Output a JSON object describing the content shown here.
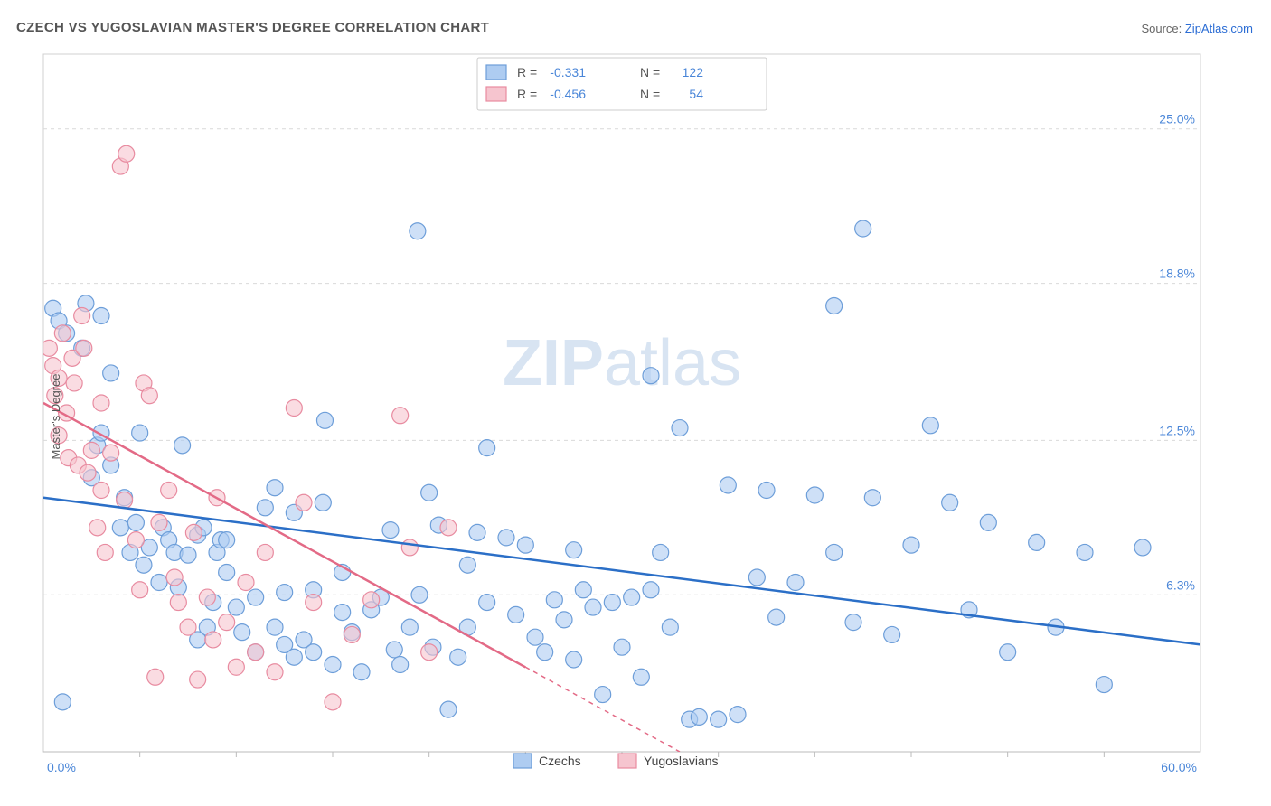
{
  "title": "CZECH VS YUGOSLAVIAN MASTER'S DEGREE CORRELATION CHART",
  "source_label": "Source: ",
  "source_site": "ZipAtlas.com",
  "ylabel": "Master's Degree",
  "watermark_bold": "ZIP",
  "watermark_rest": "atlas",
  "chart": {
    "type": "scatter",
    "background_color": "#ffffff",
    "grid_color": "#d9d9d9",
    "axis_color": "#999999",
    "xlim": [
      0,
      60
    ],
    "ylim": [
      0,
      28
    ],
    "x_ticks_major": [
      0,
      60
    ],
    "x_tick_labels": [
      "0.0%",
      "60.0%"
    ],
    "x_ticks_minor": [
      5,
      10,
      15,
      20,
      25,
      30,
      35,
      40,
      45,
      50,
      55
    ],
    "y_gridlines": [
      6.3,
      12.5,
      18.8,
      25.0
    ],
    "y_tick_labels": [
      "6.3%",
      "12.5%",
      "18.8%",
      "25.0%"
    ],
    "marker_radius": 9,
    "marker_stroke_width": 1.2,
    "trend_line_width": 2.5,
    "series": [
      {
        "name": "Czechs",
        "fill_color": "#aeccf1",
        "stroke_color": "#6d9ed9",
        "line_color": "#2b6fc7",
        "R": "-0.331",
        "N": "122",
        "trend": {
          "x1": 0,
          "y1": 10.2,
          "x2": 60,
          "y2": 4.3
        },
        "points": [
          [
            0.5,
            17.8
          ],
          [
            0.8,
            17.3
          ],
          [
            1.0,
            2.0
          ],
          [
            1.2,
            16.8
          ],
          [
            2.0,
            16.2
          ],
          [
            2.2,
            18.0
          ],
          [
            2.5,
            11.0
          ],
          [
            2.8,
            12.3
          ],
          [
            3.0,
            12.8
          ],
          [
            3.0,
            17.5
          ],
          [
            3.5,
            11.5
          ],
          [
            3.5,
            15.2
          ],
          [
            4.0,
            9.0
          ],
          [
            4.2,
            10.2
          ],
          [
            4.5,
            8.0
          ],
          [
            4.8,
            9.2
          ],
          [
            5.0,
            12.8
          ],
          [
            5.2,
            7.5
          ],
          [
            5.5,
            8.2
          ],
          [
            6.0,
            6.8
          ],
          [
            6.2,
            9.0
          ],
          [
            6.5,
            8.5
          ],
          [
            6.8,
            8.0
          ],
          [
            7.0,
            6.6
          ],
          [
            7.2,
            12.3
          ],
          [
            7.5,
            7.9
          ],
          [
            8.0,
            8.7
          ],
          [
            8.0,
            4.5
          ],
          [
            8.3,
            9.0
          ],
          [
            8.5,
            5.0
          ],
          [
            8.8,
            6.0
          ],
          [
            9.0,
            8.0
          ],
          [
            9.2,
            8.5
          ],
          [
            9.5,
            8.5
          ],
          [
            9.5,
            7.2
          ],
          [
            10.0,
            5.8
          ],
          [
            10.3,
            4.8
          ],
          [
            11.0,
            6.2
          ],
          [
            11.0,
            4.0
          ],
          [
            11.5,
            9.8
          ],
          [
            12.0,
            10.6
          ],
          [
            12.0,
            5.0
          ],
          [
            12.5,
            6.4
          ],
          [
            12.5,
            4.3
          ],
          [
            13.0,
            9.6
          ],
          [
            13.0,
            3.8
          ],
          [
            13.5,
            4.5
          ],
          [
            14.0,
            6.5
          ],
          [
            14.0,
            4.0
          ],
          [
            14.5,
            10.0
          ],
          [
            14.6,
            13.3
          ],
          [
            15.0,
            3.5
          ],
          [
            15.5,
            5.6
          ],
          [
            15.5,
            7.2
          ],
          [
            16.0,
            4.8
          ],
          [
            16.5,
            3.2
          ],
          [
            17.0,
            5.7
          ],
          [
            17.5,
            6.2
          ],
          [
            18.0,
            8.9
          ],
          [
            18.2,
            4.1
          ],
          [
            18.5,
            3.5
          ],
          [
            19.0,
            5.0
          ],
          [
            19.4,
            20.9
          ],
          [
            19.5,
            6.3
          ],
          [
            20.0,
            10.4
          ],
          [
            20.2,
            4.2
          ],
          [
            20.5,
            9.1
          ],
          [
            21.0,
            1.7
          ],
          [
            21.5,
            3.8
          ],
          [
            22.0,
            7.5
          ],
          [
            22.0,
            5.0
          ],
          [
            22.5,
            8.8
          ],
          [
            23.0,
            6.0
          ],
          [
            23.0,
            12.2
          ],
          [
            24.0,
            8.6
          ],
          [
            24.5,
            5.5
          ],
          [
            25.0,
            8.3
          ],
          [
            25.5,
            4.6
          ],
          [
            26.0,
            4.0
          ],
          [
            26.5,
            6.1
          ],
          [
            27.0,
            5.3
          ],
          [
            27.5,
            8.1
          ],
          [
            27.5,
            3.7
          ],
          [
            28.0,
            6.5
          ],
          [
            28.5,
            5.8
          ],
          [
            29.0,
            2.3
          ],
          [
            29.5,
            6.0
          ],
          [
            30.0,
            4.2
          ],
          [
            30.5,
            6.2
          ],
          [
            31.0,
            3.0
          ],
          [
            31.5,
            15.1
          ],
          [
            31.5,
            6.5
          ],
          [
            32.0,
            8.0
          ],
          [
            32.5,
            5.0
          ],
          [
            33.0,
            13.0
          ],
          [
            33.5,
            1.3
          ],
          [
            34.0,
            1.4
          ],
          [
            35.0,
            1.3
          ],
          [
            35.5,
            10.7
          ],
          [
            36.0,
            1.5
          ],
          [
            37.0,
            7.0
          ],
          [
            37.5,
            10.5
          ],
          [
            38.0,
            5.4
          ],
          [
            39.0,
            6.8
          ],
          [
            40.0,
            10.3
          ],
          [
            41.0,
            17.9
          ],
          [
            41.0,
            8.0
          ],
          [
            42.0,
            5.2
          ],
          [
            42.5,
            21.0
          ],
          [
            43.0,
            10.2
          ],
          [
            44.0,
            4.7
          ],
          [
            45.0,
            8.3
          ],
          [
            46.0,
            13.1
          ],
          [
            47.0,
            10.0
          ],
          [
            48.0,
            5.7
          ],
          [
            49.0,
            9.2
          ],
          [
            50.0,
            4.0
          ],
          [
            51.5,
            8.4
          ],
          [
            52.5,
            5.0
          ],
          [
            54.0,
            8.0
          ],
          [
            55.0,
            2.7
          ],
          [
            57.0,
            8.2
          ]
        ]
      },
      {
        "name": "Yugoslavians",
        "fill_color": "#f6c5cf",
        "stroke_color": "#e88ba0",
        "line_color": "#e36a86",
        "R": "-0.456",
        "N": "54",
        "trend": {
          "x1": 0,
          "y1": 14.0,
          "x2": 33,
          "y2": 0
        },
        "trend_dash_after": {
          "x1": 25,
          "y1": 3.4,
          "x2": 33,
          "y2": 0
        },
        "points": [
          [
            0.3,
            16.2
          ],
          [
            0.5,
            15.5
          ],
          [
            0.6,
            14.3
          ],
          [
            0.8,
            15.0
          ],
          [
            0.8,
            12.7
          ],
          [
            1.0,
            16.8
          ],
          [
            1.2,
            13.6
          ],
          [
            1.3,
            11.8
          ],
          [
            1.5,
            15.8
          ],
          [
            1.6,
            14.8
          ],
          [
            1.8,
            11.5
          ],
          [
            2.0,
            17.5
          ],
          [
            2.1,
            16.2
          ],
          [
            2.3,
            11.2
          ],
          [
            2.5,
            12.1
          ],
          [
            2.8,
            9.0
          ],
          [
            3.0,
            14.0
          ],
          [
            3.0,
            10.5
          ],
          [
            3.2,
            8.0
          ],
          [
            3.5,
            12.0
          ],
          [
            4.0,
            23.5
          ],
          [
            4.2,
            10.1
          ],
          [
            4.3,
            24.0
          ],
          [
            4.8,
            8.5
          ],
          [
            5.0,
            6.5
          ],
          [
            5.2,
            14.8
          ],
          [
            5.5,
            14.3
          ],
          [
            5.8,
            3.0
          ],
          [
            6.0,
            9.2
          ],
          [
            6.5,
            10.5
          ],
          [
            6.8,
            7.0
          ],
          [
            7.0,
            6.0
          ],
          [
            7.5,
            5.0
          ],
          [
            7.8,
            8.8
          ],
          [
            8.0,
            2.9
          ],
          [
            8.5,
            6.2
          ],
          [
            8.8,
            4.5
          ],
          [
            9.0,
            10.2
          ],
          [
            9.5,
            5.2
          ],
          [
            10.0,
            3.4
          ],
          [
            10.5,
            6.8
          ],
          [
            11.0,
            4.0
          ],
          [
            11.5,
            8.0
          ],
          [
            12.0,
            3.2
          ],
          [
            13.0,
            13.8
          ],
          [
            13.5,
            10.0
          ],
          [
            14.0,
            6.0
          ],
          [
            15.0,
            2.0
          ],
          [
            16.0,
            4.7
          ],
          [
            17.0,
            6.1
          ],
          [
            18.5,
            13.5
          ],
          [
            19.0,
            8.2
          ],
          [
            20.0,
            4.0
          ],
          [
            21.0,
            9.0
          ]
        ]
      }
    ]
  },
  "legend_top": {
    "rows": [
      {
        "swatch_fill": "#aeccf1",
        "swatch_stroke": "#6d9ed9",
        "R_label": "R =",
        "R": "-0.331",
        "N_label": "N =",
        "N": "122"
      },
      {
        "swatch_fill": "#f6c5cf",
        "swatch_stroke": "#e88ba0",
        "R_label": "R =",
        "R": "-0.456",
        "N_label": "N =",
        "N": "54"
      }
    ]
  },
  "legend_bottom": {
    "items": [
      {
        "swatch_fill": "#aeccf1",
        "swatch_stroke": "#6d9ed9",
        "label": "Czechs"
      },
      {
        "swatch_fill": "#f6c5cf",
        "swatch_stroke": "#e88ba0",
        "label": "Yugoslavians"
      }
    ]
  }
}
